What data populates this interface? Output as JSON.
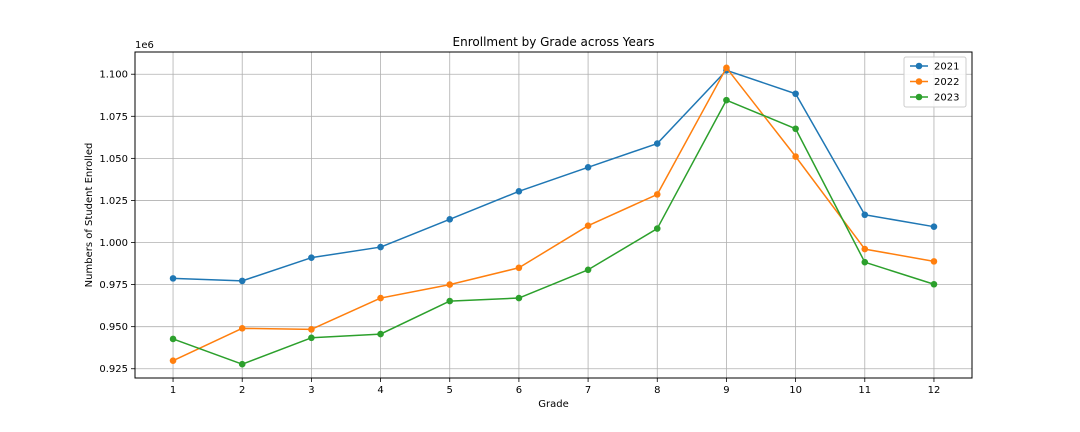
{
  "chart_data": {
    "type": "line",
    "title": "Enrollment by Grade across Years",
    "xlabel": "Grade",
    "ylabel": "Numbers of Student Enrolled",
    "y_offset_label": "1e6",
    "x": [
      1,
      2,
      3,
      4,
      5,
      6,
      7,
      8,
      9,
      10,
      11,
      12
    ],
    "x_tick_labels": [
      "1",
      "2",
      "3",
      "4",
      "5",
      "6",
      "7",
      "8",
      "9",
      "10",
      "11",
      "12"
    ],
    "y_ticks": [
      0.925,
      0.95,
      0.975,
      1.0,
      1.025,
      1.05,
      1.075,
      1.1
    ],
    "y_tick_labels": [
      "0.925",
      "0.950",
      "0.975",
      "1.000",
      "1.025",
      "1.050",
      "1.075",
      "1.100"
    ],
    "xlim": [
      0.45,
      12.55
    ],
    "ylim": [
      0.9195,
      1.1132
    ],
    "grid": true,
    "legend_position": "upper-right",
    "series": [
      {
        "name": "2021",
        "color": "#1f77b4",
        "values": [
          0.9787,
          0.9772,
          0.991,
          0.9973,
          1.0138,
          1.0304,
          1.0447,
          1.0588,
          1.1023,
          1.0884,
          1.0165,
          1.0094
        ]
      },
      {
        "name": "2022",
        "color": "#ff7f0e",
        "values": [
          0.9298,
          0.949,
          0.9484,
          0.967,
          0.975,
          0.985,
          1.01,
          1.0286,
          1.1038,
          1.0511,
          0.9961,
          0.9888
        ]
      },
      {
        "name": "2023",
        "color": "#2ca02c",
        "values": [
          0.9427,
          0.9277,
          0.9434,
          0.9456,
          0.9652,
          0.967,
          0.9838,
          1.0083,
          1.0846,
          1.0676,
          0.9883,
          0.9752
        ]
      }
    ]
  }
}
